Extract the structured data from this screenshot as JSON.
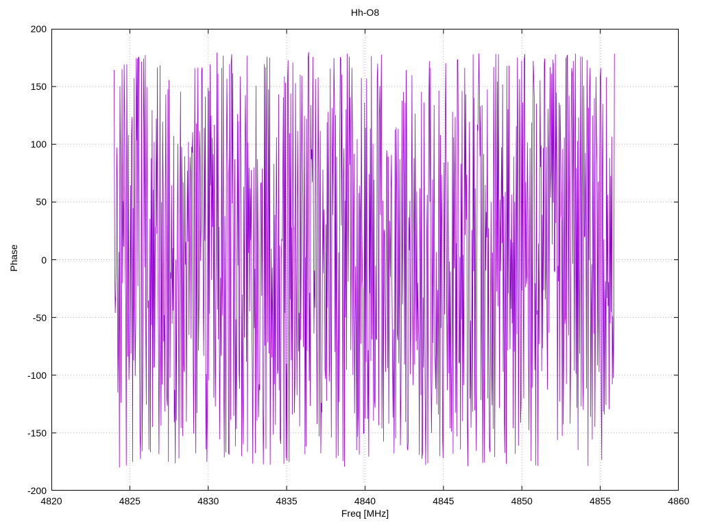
{
  "chart_data": {
    "type": "line",
    "title": "Hh-O8",
    "xlabel": "Freq [MHz]",
    "ylabel": "Phase",
    "xlim": [
      4820,
      4860
    ],
    "ylim": [
      -200,
      200
    ],
    "xticks": [
      4820,
      4825,
      4830,
      4835,
      4840,
      4845,
      4850,
      4855,
      4860
    ],
    "yticks": [
      -200,
      -150,
      -100,
      -50,
      0,
      50,
      100,
      150,
      200
    ],
    "grid": true,
    "grid_color": "#b5b5b5",
    "border_color": "#000000",
    "legend_position": "none",
    "series": [
      {
        "name": "phase",
        "color": "#9400D3",
        "line_width": 0.8,
        "x_start": 4824.0,
        "x_end": 4855.9,
        "n_points": 950,
        "y_min": -180,
        "y_max": 180,
        "behavior": "wrapped-phase-noise",
        "seed": 1337
      }
    ]
  }
}
